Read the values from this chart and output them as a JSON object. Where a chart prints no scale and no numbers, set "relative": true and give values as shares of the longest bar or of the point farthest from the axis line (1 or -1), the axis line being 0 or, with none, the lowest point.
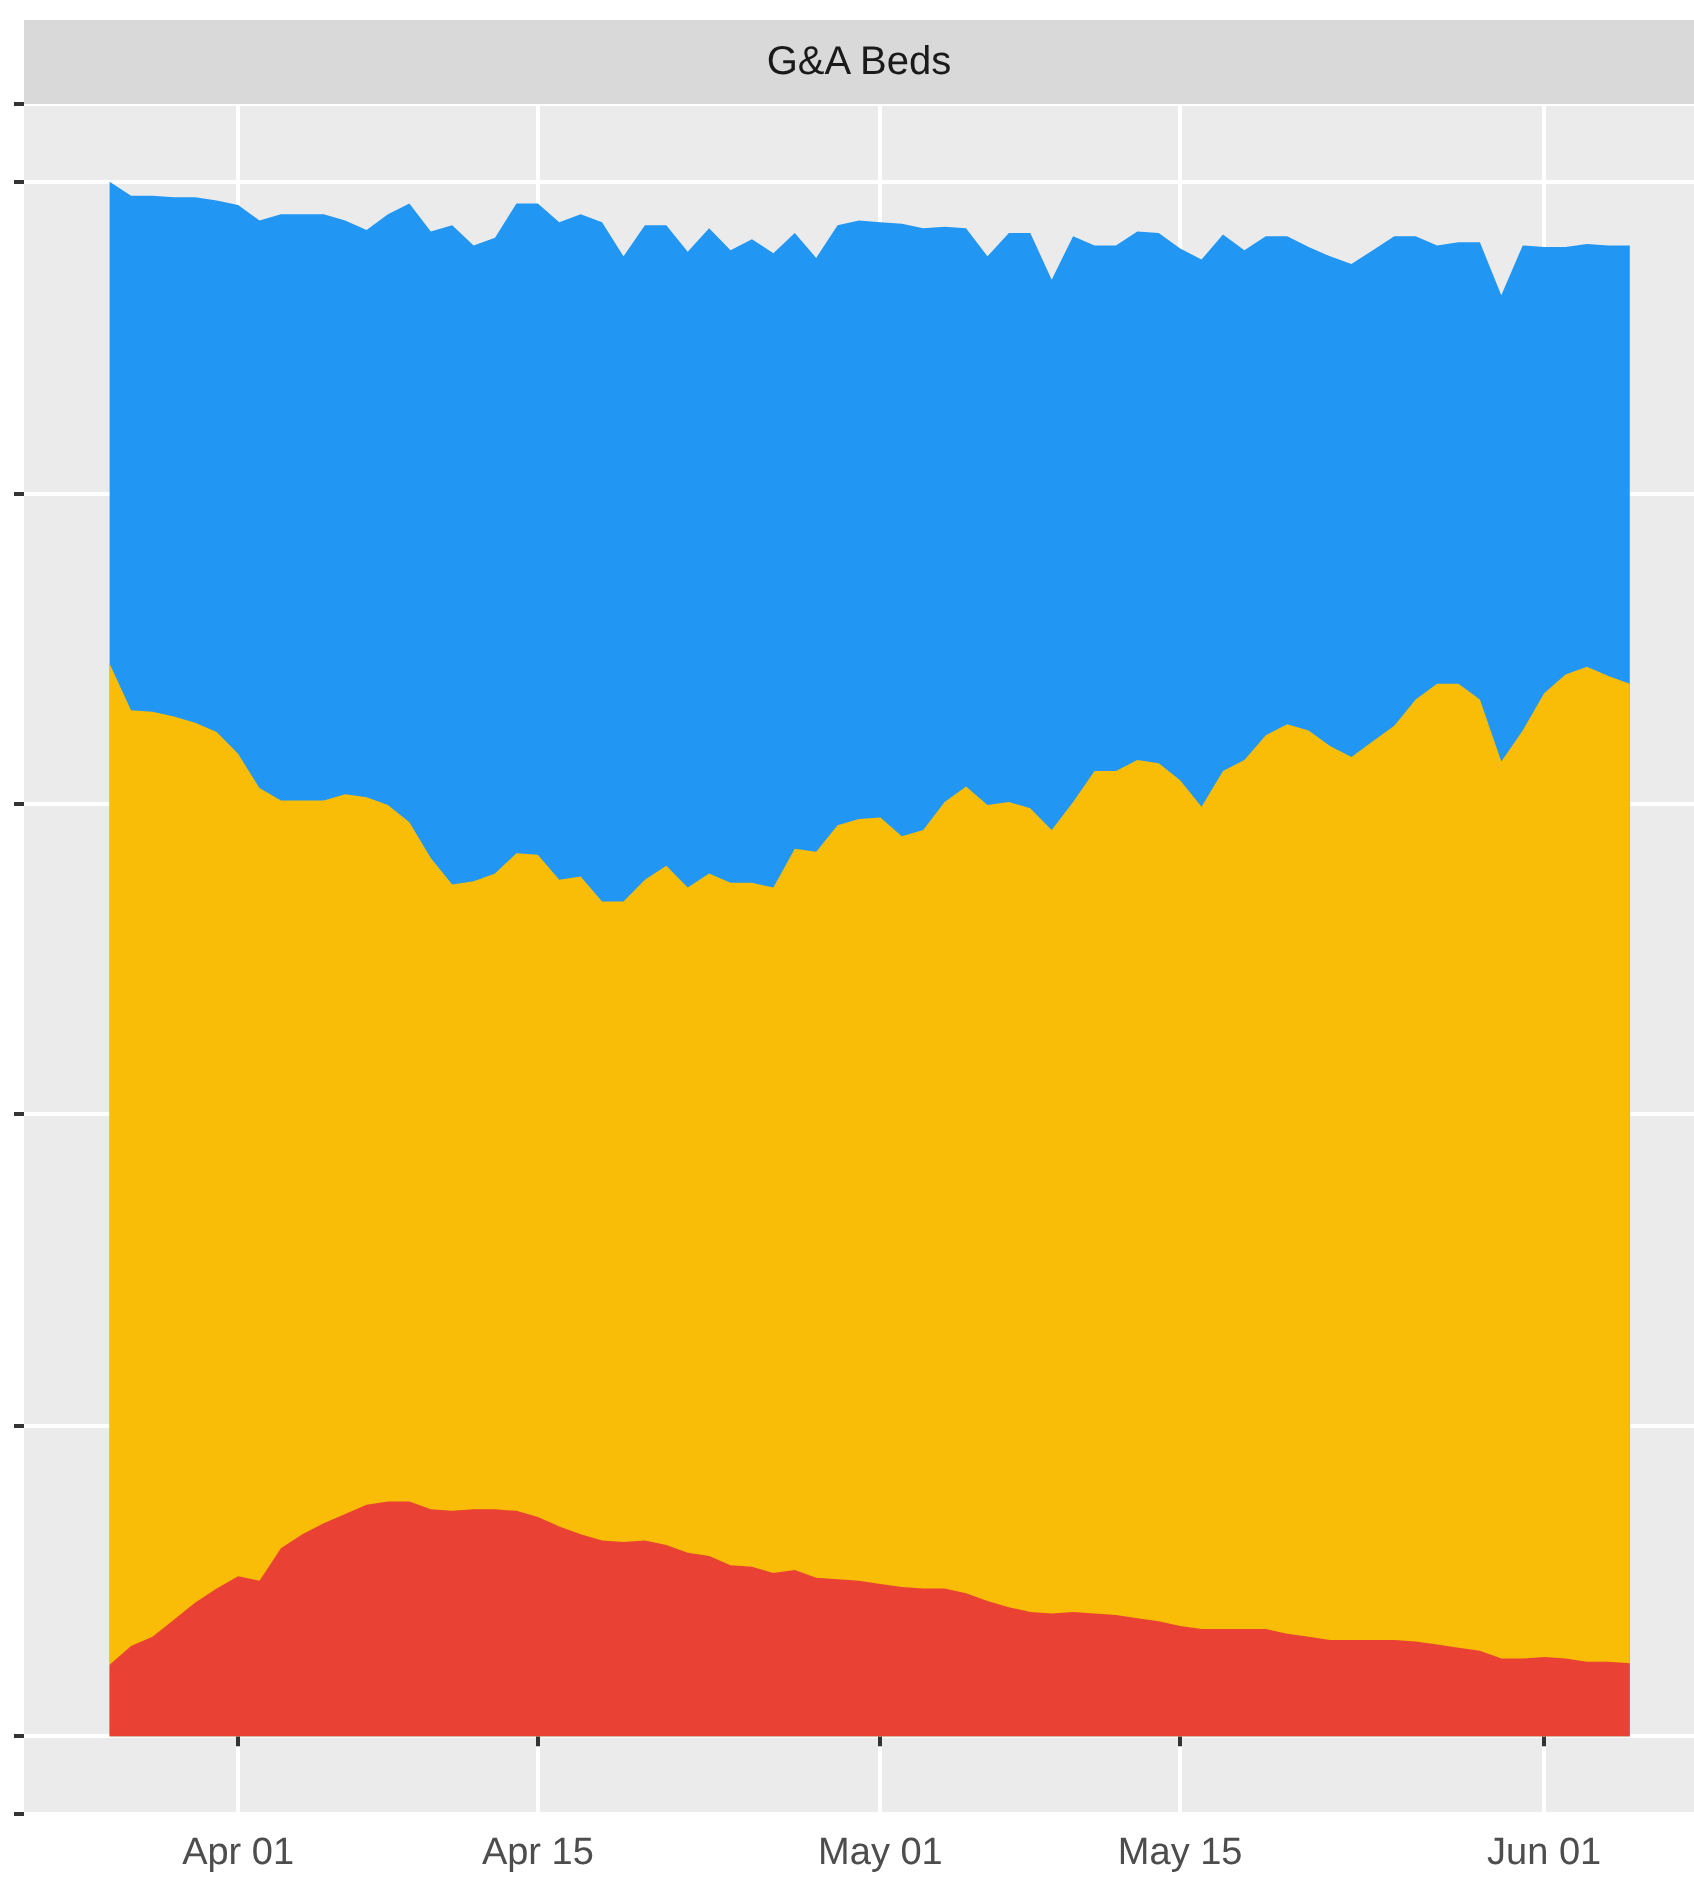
{
  "chart_data": {
    "type": "area",
    "title": "G&A Beds",
    "stacked": true,
    "relative": true,
    "grid": true,
    "tick_labels": "x",
    "x": [
      "--03-26",
      "--03-27",
      "--03-28",
      "--03-29",
      "--03-30",
      "--03-31",
      "--04-01",
      "--04-02",
      "--04-03",
      "--04-04",
      "--04-05",
      "--04-06",
      "--04-07",
      "--04-08",
      "--04-09",
      "--04-10",
      "--04-11",
      "--04-12",
      "--04-13",
      "--04-14",
      "--04-15",
      "--04-16",
      "--04-17",
      "--04-18",
      "--04-19",
      "--04-20",
      "--04-21",
      "--04-22",
      "--04-23",
      "--04-24",
      "--04-25",
      "--04-26",
      "--04-27",
      "--04-28",
      "--04-29",
      "--04-30",
      "--05-01",
      "--05-02",
      "--05-03",
      "--05-04",
      "--05-05",
      "--05-06",
      "--05-07",
      "--05-08",
      "--05-09",
      "--05-10",
      "--05-11",
      "--05-12",
      "--05-13",
      "--05-14",
      "--05-15",
      "--05-16",
      "--05-17",
      "--05-18",
      "--05-19",
      "--05-20",
      "--05-21",
      "--05-22",
      "--05-23",
      "--05-24",
      "--05-25",
      "--05-26",
      "--05-27",
      "--05-28",
      "--05-29",
      "--05-30",
      "--05-31",
      "--06-01",
      "--06-02",
      "--06-03",
      "--06-04",
      "--06-05"
    ],
    "xlim": [
      "--03-22",
      "--06-08"
    ],
    "xticks": [
      {
        "value": "--04-01",
        "label": "Apr 01"
      },
      {
        "value": "--04-15",
        "label": "Apr 15"
      },
      {
        "value": "--05-01",
        "label": "May 01"
      },
      {
        "value": "--05-15",
        "label": "May 15"
      },
      {
        "value": "--06-01",
        "label": "Jun 01"
      }
    ],
    "series": [
      {
        "color": "#e94235",
        "values": [
          0.046,
          0.058,
          0.064,
          0.075,
          0.086,
          0.095,
          0.103,
          0.1,
          0.121,
          0.13,
          0.137,
          0.143,
          0.149,
          0.151,
          0.151,
          0.146,
          0.145,
          0.146,
          0.146,
          0.145,
          0.141,
          0.135,
          0.13,
          0.126,
          0.125,
          0.126,
          0.123,
          0.118,
          0.116,
          0.11,
          0.109,
          0.105,
          0.107,
          0.102,
          0.101,
          0.1,
          0.098,
          0.096,
          0.095,
          0.095,
          0.092,
          0.087,
          0.083,
          0.08,
          0.079,
          0.08,
          0.079,
          0.078,
          0.076,
          0.074,
          0.071,
          0.069,
          0.069,
          0.069,
          0.069,
          0.066,
          0.064,
          0.062,
          0.062,
          0.062,
          0.062,
          0.061,
          0.059,
          0.057,
          0.055,
          0.05,
          0.05,
          0.051,
          0.05,
          0.048,
          0.048,
          0.047
        ]
      },
      {
        "color": "#f9bc07",
        "values": [
          0.644,
          0.602,
          0.595,
          0.581,
          0.566,
          0.551,
          0.529,
          0.51,
          0.481,
          0.472,
          0.465,
          0.463,
          0.455,
          0.448,
          0.437,
          0.419,
          0.403,
          0.404,
          0.409,
          0.423,
          0.426,
          0.416,
          0.423,
          0.411,
          0.412,
          0.425,
          0.437,
          0.428,
          0.439,
          0.439,
          0.44,
          0.441,
          0.464,
          0.467,
          0.485,
          0.49,
          0.493,
          0.483,
          0.488,
          0.506,
          0.519,
          0.512,
          0.518,
          0.517,
          0.504,
          0.521,
          0.542,
          0.543,
          0.552,
          0.552,
          0.544,
          0.529,
          0.552,
          0.559,
          0.575,
          0.585,
          0.583,
          0.575,
          0.568,
          0.578,
          0.588,
          0.606,
          0.618,
          0.62,
          0.612,
          0.577,
          0.597,
          0.62,
          0.633,
          0.64,
          0.634,
          0.63
        ]
      },
      {
        "color": "#2196f3",
        "values": [
          0.31,
          0.331,
          0.332,
          0.334,
          0.338,
          0.342,
          0.353,
          0.365,
          0.377,
          0.377,
          0.377,
          0.369,
          0.365,
          0.38,
          0.398,
          0.403,
          0.424,
          0.409,
          0.409,
          0.418,
          0.419,
          0.423,
          0.426,
          0.437,
          0.415,
          0.421,
          0.412,
          0.409,
          0.415,
          0.407,
          0.414,
          0.408,
          0.396,
          0.382,
          0.386,
          0.385,
          0.383,
          0.394,
          0.387,
          0.37,
          0.359,
          0.353,
          0.366,
          0.37,
          0.354,
          0.364,
          0.338,
          0.338,
          0.34,
          0.341,
          0.342,
          0.352,
          0.345,
          0.328,
          0.321,
          0.314,
          0.311,
          0.315,
          0.317,
          0.316,
          0.315,
          0.298,
          0.282,
          0.284,
          0.294,
          0.3,
          0.312,
          0.287,
          0.275,
          0.272,
          0.277,
          0.282
        ]
      }
    ]
  }
}
